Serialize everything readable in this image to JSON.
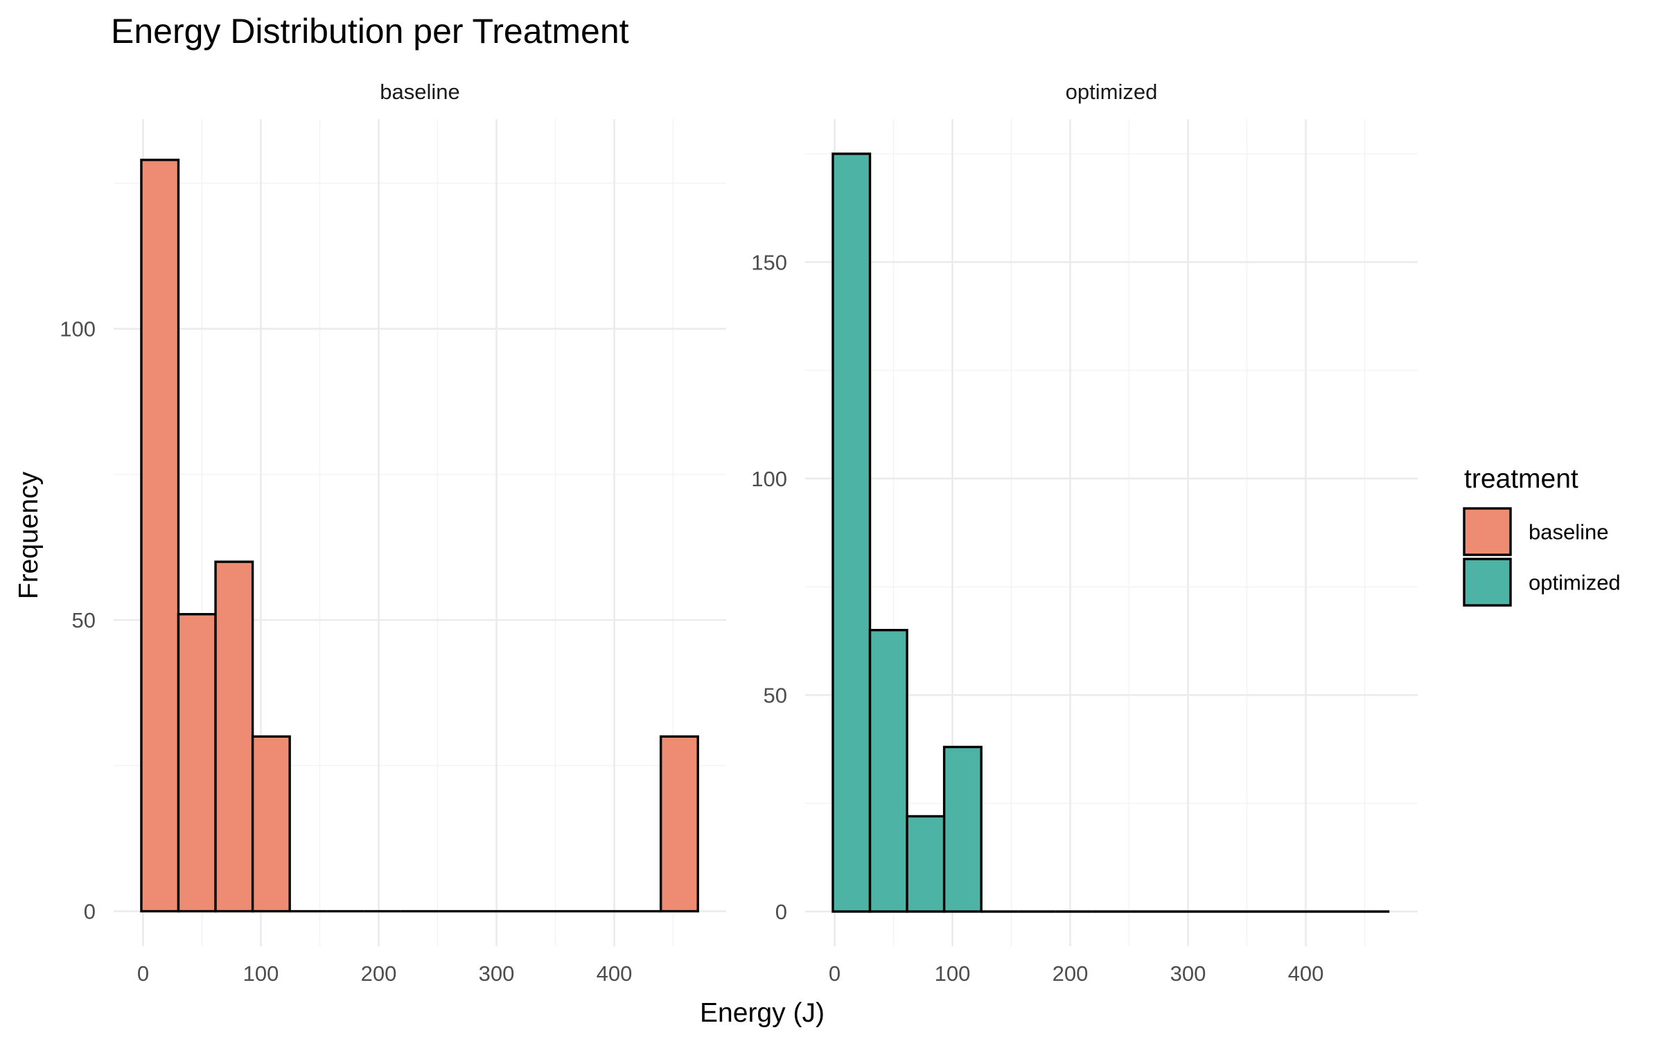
{
  "chart_data": {
    "type": "bar",
    "subtype": "histogram",
    "title": "Energy Distribution per Treatment",
    "xlabel": "Energy (J)",
    "ylabel": "Frequency",
    "facets": [
      "baseline",
      "optimized"
    ],
    "bin_width": 31.5,
    "bin_start": -1.5,
    "bin_count": 15,
    "xlim": [
      -25,
      495
    ],
    "x_ticks": [
      0,
      100,
      200,
      300,
      400
    ],
    "series": [
      {
        "name": "baseline",
        "color": "#ED8B73",
        "ylim": [
          -6,
          136
        ],
        "y_ticks": [
          0,
          50,
          100
        ],
        "counts": [
          129,
          51,
          60,
          30,
          0,
          0,
          0,
          0,
          0,
          0,
          0,
          0,
          0,
          0,
          30
        ]
      },
      {
        "name": "optimized",
        "color": "#4DB3A4",
        "ylim": [
          -8,
          183
        ],
        "y_ticks": [
          0,
          50,
          100,
          150
        ],
        "counts": [
          175,
          65,
          22,
          38,
          0,
          0,
          0,
          0,
          0,
          0,
          0,
          0,
          0,
          0,
          0
        ]
      }
    ],
    "legend": {
      "title": "treatment",
      "position": "right",
      "entries": [
        "baseline",
        "optimized"
      ]
    },
    "grid": true
  }
}
